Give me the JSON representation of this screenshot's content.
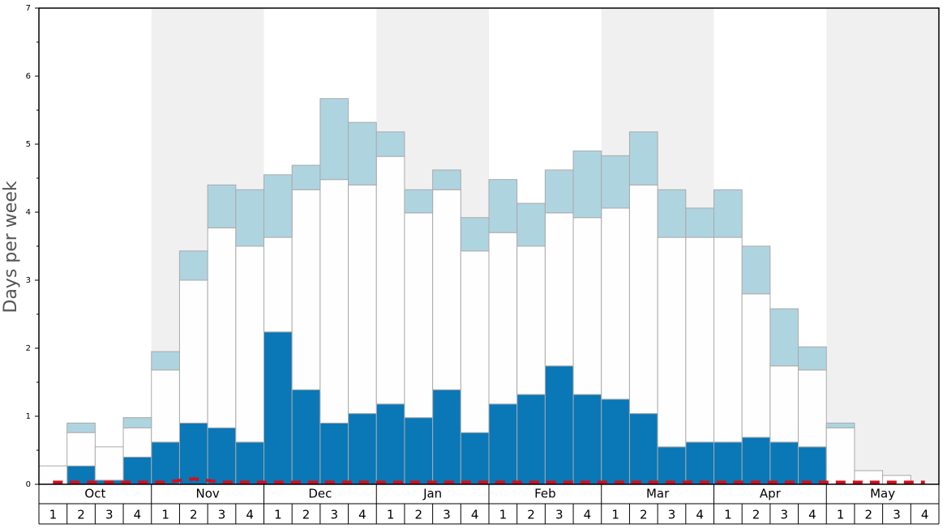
{
  "chart_data": {
    "type": "bar",
    "stacked": true,
    "y_label": "Days per week",
    "categories": [
      "1",
      "2",
      "3",
      "4",
      "1",
      "2",
      "3",
      "4",
      "1",
      "2",
      "3",
      "4",
      "1",
      "2",
      "3",
      "4",
      "1",
      "2",
      "3",
      "4",
      "1",
      "2",
      "3",
      "4",
      "1",
      "2",
      "3",
      "4",
      "1",
      "2",
      "3",
      "4"
    ],
    "months": [
      "Oct",
      "Nov",
      "Dec",
      "Jan",
      "Feb",
      "Mar",
      "Apr",
      "May"
    ],
    "ylim": [
      0,
      7
    ],
    "yticks": [
      0,
      1,
      2,
      3,
      4,
      5,
      6,
      7
    ],
    "yminorticks": [
      0.5,
      1.5,
      2.5,
      3.5,
      4.5,
      5.5,
      6.5
    ],
    "shade_color": "#f0f0f0",
    "series": [
      {
        "color": "#0a77b7",
        "values": [
          0,
          0.27,
          0.06,
          0.4,
          0.62,
          0.9,
          0.83,
          0.62,
          2.24,
          1.39,
          0.9,
          1.04,
          1.18,
          0.98,
          1.39,
          0.76,
          1.18,
          1.32,
          1.74,
          1.32,
          1.25,
          1.04,
          0.55,
          0.62,
          0.62,
          0.69,
          0.62,
          0.55,
          0,
          0,
          0,
          0
        ]
      },
      {
        "color": "#fefefe",
        "values": [
          0.27,
          0.49,
          0.49,
          0.43,
          1.06,
          2.1,
          2.94,
          2.88,
          1.39,
          2.94,
          3.58,
          3.36,
          3.64,
          3.01,
          2.94,
          2.67,
          2.52,
          2.18,
          2.25,
          2.6,
          2.81,
          3.36,
          3.08,
          3.01,
          3.01,
          2.11,
          1.12,
          1.13,
          0.83,
          0.2,
          0.13,
          0
        ]
      },
      {
        "color": "#aed4e0",
        "values": [
          0,
          0.14,
          0,
          0.15,
          0.27,
          0.43,
          0.63,
          0.83,
          0.92,
          0.36,
          1.19,
          0.92,
          0.36,
          0.34,
          0.29,
          0.49,
          0.78,
          0.63,
          0.63,
          0.98,
          0.77,
          0.78,
          0.7,
          0.43,
          0.7,
          0.7,
          0.84,
          0.34,
          0.07,
          0,
          0,
          0
        ]
      }
    ],
    "line_series": {
      "color": "#d0101e",
      "values": [
        0.03,
        0.03,
        0.03,
        0.03,
        0.03,
        0.08,
        0.03,
        0.03,
        0.03,
        0.03,
        0.03,
        0.03,
        0.03,
        0.03,
        0.03,
        0.03,
        0.03,
        0.03,
        0.03,
        0.03,
        0.03,
        0.03,
        0.03,
        0.03,
        0.03,
        0.03,
        0.03,
        0.03,
        0.03,
        0.03,
        0.03,
        0.03
      ]
    }
  }
}
